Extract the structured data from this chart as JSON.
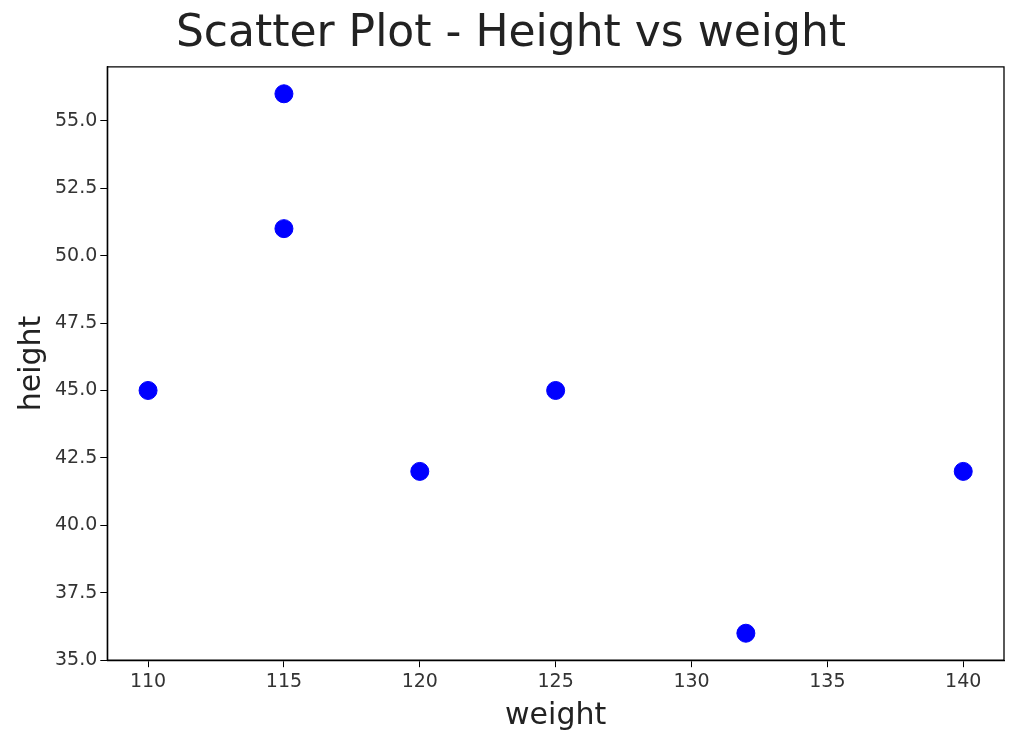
{
  "chart_data": {
    "type": "scatter",
    "title": "Scatter Plot - Height vs weight",
    "xlabel": "weight",
    "ylabel": "height",
    "grid": false,
    "marker": "circle",
    "series": [
      {
        "color": "#0000ff",
        "x": [
          110,
          115,
          115,
          120,
          125,
          132,
          140
        ],
        "values": [
          45,
          56,
          51,
          42,
          45,
          36,
          42
        ]
      }
    ],
    "xlim": [
      108.5,
      141.5
    ],
    "xticks": [
      110,
      115,
      120,
      125,
      130,
      135,
      140
    ],
    "ylim": [
      35,
      57
    ],
    "yticks": [
      {
        "value": 35,
        "label": "35.0"
      },
      {
        "value": 37.5,
        "label": "37.5"
      },
      {
        "value": 40,
        "label": "40.0"
      },
      {
        "value": 42.5,
        "label": "42.5"
      },
      {
        "value": 45,
        "label": "45.0"
      },
      {
        "value": 47.5,
        "label": "47.5"
      },
      {
        "value": 50,
        "label": "50.0"
      },
      {
        "value": 52.5,
        "label": "52.5"
      },
      {
        "value": 55,
        "label": "55.0"
      }
    ]
  }
}
